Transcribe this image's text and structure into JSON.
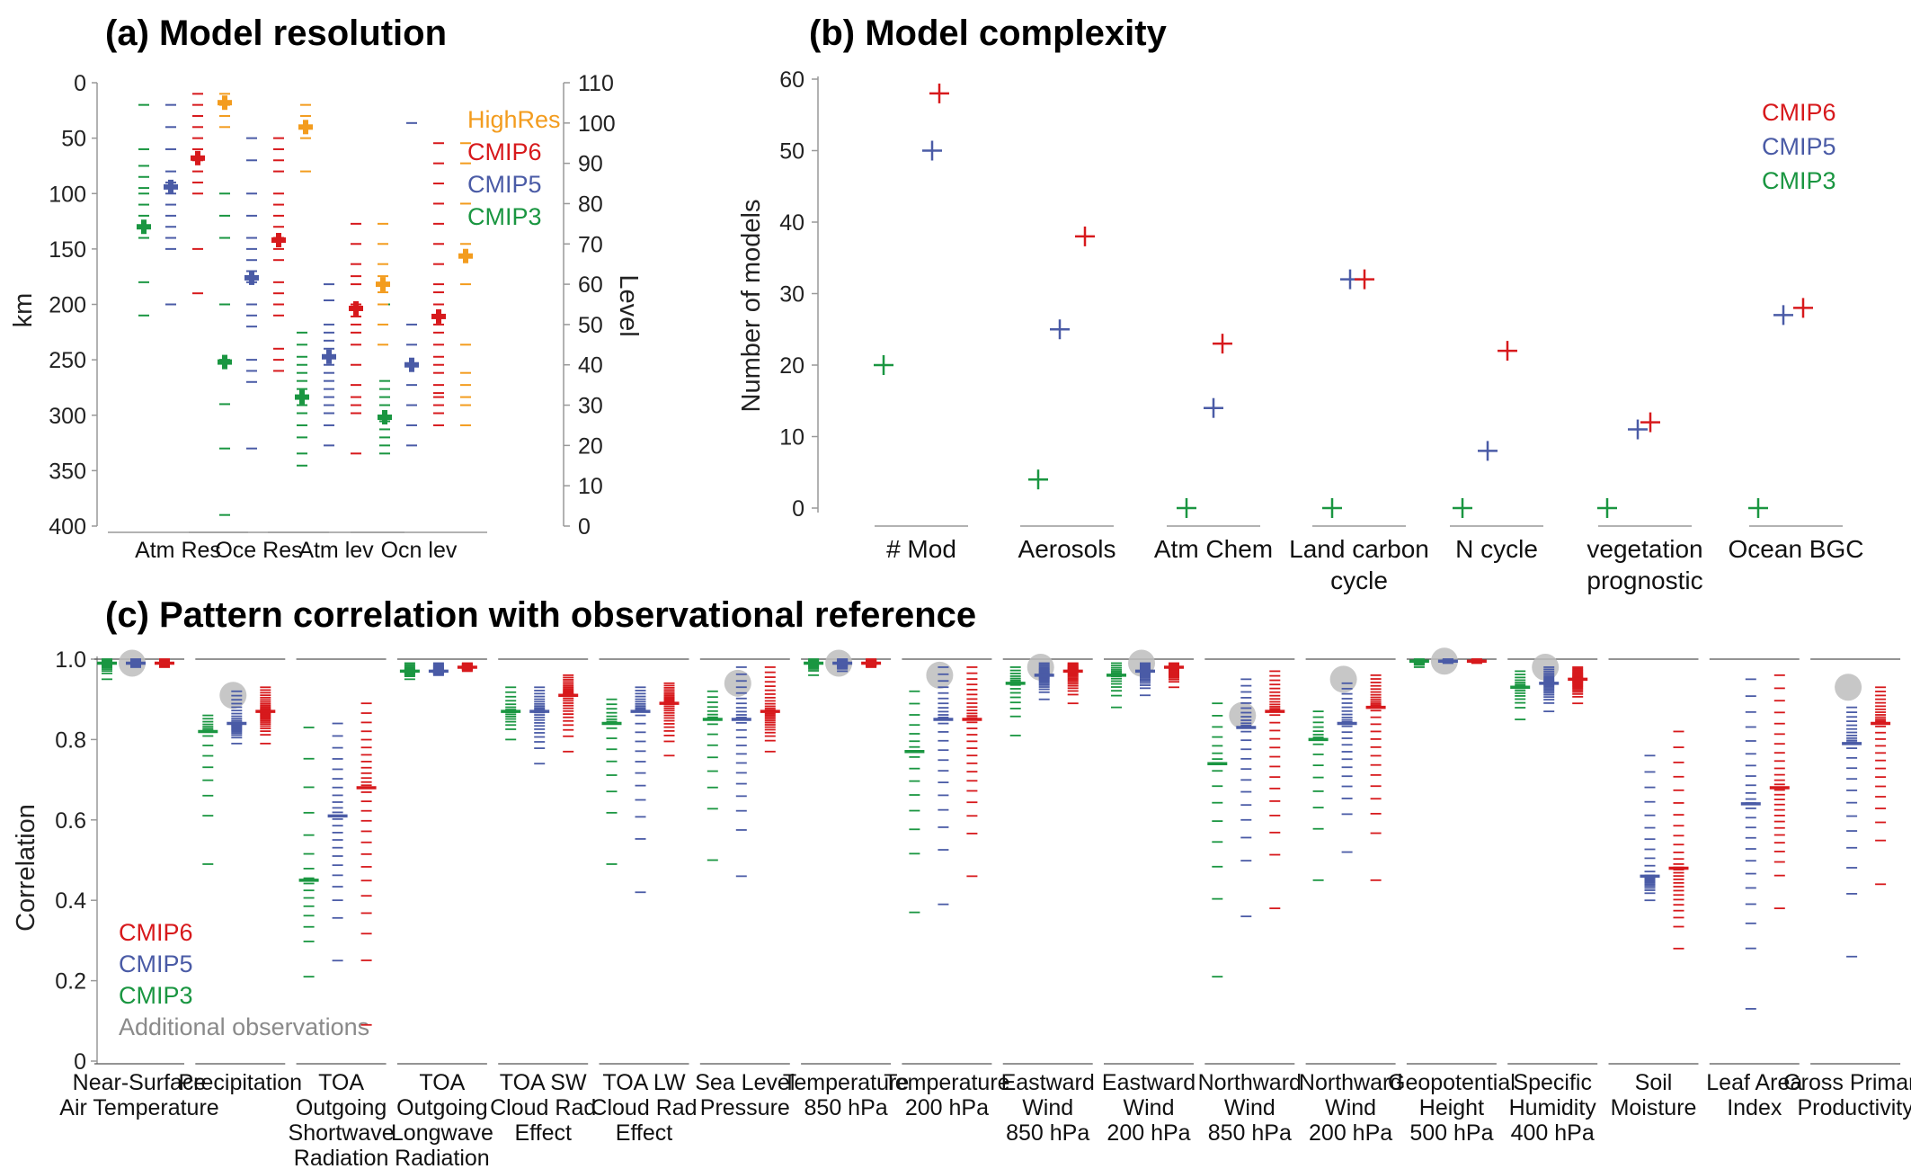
{
  "colors": {
    "CMIP3": "#1a9641",
    "CMIP5": "#4a5ba6",
    "CMIP6": "#d7191c",
    "HighRes": "#f39c1e",
    "obs": "#bdbdbd"
  },
  "chart_data": [
    {
      "type": "scatter",
      "title": "(a) Model resolution",
      "ylabel": "km",
      "y2label": "Level",
      "ylim": [
        400,
        0
      ],
      "y2lim": [
        0,
        110
      ],
      "yticks": [
        0,
        50,
        100,
        150,
        200,
        250,
        300,
        350,
        400
      ],
      "y2ticks": [
        0,
        10,
        20,
        30,
        40,
        50,
        60,
        70,
        80,
        90,
        100,
        110
      ],
      "categories": [
        "Atm Res",
        "Oce Res",
        "Atm lev",
        "Ocn lev"
      ],
      "legend": [
        "HighRes",
        "CMIP6",
        "CMIP5",
        "CMIP3"
      ],
      "legend_position": "top-right",
      "series": [
        {
          "name": "CMIP3",
          "color": "#1a9641",
          "axes": [
            "km",
            "km",
            "level",
            "level"
          ],
          "means": [
            130,
            252,
            32,
            27
          ],
          "models": [
            [
              20,
              60,
              75,
              85,
              95,
              100,
              110,
              120,
              130,
              140,
              180,
              210
            ],
            [
              100,
              120,
              140,
              200,
              250,
              290,
              330,
              390
            ],
            [
              15,
              18,
              22,
              25,
              28,
              30,
              32,
              34,
              36,
              38,
              40,
              42,
              45,
              48
            ],
            [
              18,
              20,
              22,
              24,
              26,
              27,
              30,
              32,
              34,
              36,
              55
            ]
          ]
        },
        {
          "name": "CMIP5",
          "color": "#4a5ba6",
          "axes": [
            "km",
            "km",
            "level",
            "level"
          ],
          "means": [
            94,
            176,
            42,
            40
          ],
          "models": [
            [
              20,
              40,
              60,
              80,
              90,
              100,
              110,
              120,
              130,
              140,
              150,
              200
            ],
            [
              50,
              70,
              100,
              120,
              140,
              150,
              160,
              170,
              180,
              200,
              210,
              220,
              250,
              260,
              270,
              330
            ],
            [
              20,
              25,
              28,
              30,
              32,
              34,
              36,
              38,
              40,
              42,
              44,
              46,
              48,
              50,
              56,
              60
            ],
            [
              20,
              25,
              30,
              35,
              40,
              45,
              50,
              100
            ]
          ]
        },
        {
          "name": "CMIP6",
          "color": "#d7191c",
          "axes": [
            "km",
            "km",
            "level",
            "level"
          ],
          "means": [
            68,
            142,
            54,
            52
          ],
          "models": [
            [
              10,
              20,
              30,
              40,
              50,
              60,
              70,
              80,
              90,
              100,
              150,
              190
            ],
            [
              50,
              60,
              70,
              80,
              100,
              110,
              120,
              130,
              140,
              150,
              160,
              180,
              190,
              200,
              210,
              240,
              250,
              260
            ],
            [
              18,
              28,
              30,
              32,
              35,
              40,
              45,
              48,
              50,
              52,
              55,
              60,
              62,
              65,
              70,
              75
            ],
            [
              25,
              28,
              30,
              32,
              33,
              35,
              38,
              40,
              42,
              45,
              48,
              50,
              52,
              55,
              58,
              60,
              65,
              70,
              75,
              80,
              85,
              90,
              95
            ]
          ]
        },
        {
          "name": "HighRes",
          "color": "#f39c1e",
          "axes": [
            "km",
            "km",
            "level",
            "level"
          ],
          "means": [
            18,
            40,
            60,
            67
          ],
          "models": [
            [
              10,
              20,
              30,
              40
            ],
            [
              20,
              30,
              40,
              50,
              80
            ],
            [
              45,
              50,
              55,
              58,
              60,
              62,
              65,
              70,
              75
            ],
            [
              25,
              30,
              32,
              35,
              38,
              45,
              60,
              70,
              80,
              90,
              95
            ]
          ]
        }
      ]
    },
    {
      "type": "scatter",
      "title": "(b) Model complexity",
      "ylabel": "Number of models",
      "ylim": [
        0,
        60
      ],
      "yticks": [
        0,
        10,
        20,
        30,
        40,
        50,
        60
      ],
      "categories": [
        "# Mod",
        "Aerosols",
        "Atm Chem",
        "Land carbon\ncycle",
        "N cycle",
        "vegetation\nprognostic",
        "Ocean BGC"
      ],
      "legend": [
        "CMIP6",
        "CMIP5",
        "CMIP3"
      ],
      "legend_position": "top-right",
      "series": [
        {
          "name": "CMIP3",
          "color": "#1a9641",
          "values": [
            20,
            4,
            0,
            0,
            0,
            0,
            0
          ]
        },
        {
          "name": "CMIP5",
          "color": "#4a5ba6",
          "values": [
            50,
            25,
            14,
            32,
            8,
            11,
            27
          ]
        },
        {
          "name": "CMIP6",
          "color": "#d7191c",
          "values": [
            58,
            38,
            23,
            32,
            22,
            12,
            28
          ]
        }
      ]
    },
    {
      "type": "scatter",
      "title": "(c) Pattern correlation with observational reference",
      "ylabel": "Correlation",
      "ylim": [
        0,
        1
      ],
      "yticks": [
        "0",
        "0.2",
        "0.4",
        "0.6",
        "0.8",
        "1.0"
      ],
      "categories": [
        "Near-Surface\nAir Temperature",
        "Precipitation",
        "TOA\nOutgoing\nShortwave\nRadiation",
        "TOA\nOutgoing\nLongwave\nRadiation",
        "TOA SW\nCloud Rad\nEffect",
        "TOA LW\nCloud Rad\nEffect",
        "Sea Level\nPressure",
        "Temperature\n850 hPa",
        "Temperature\n200 hPa",
        "Eastward\nWind\n850 hPa",
        "Eastward\nWind\n200 hPa",
        "Northward\nWind\n850 hPa",
        "Northward\nWind\n200 hPa",
        "Geopotential\nHeight\n500 hPa",
        "Specific\nHumidity\n400 hPa",
        "Soil\nMoisture",
        "Leaf Area\nIndex",
        "Gross Primary\nProductivity"
      ],
      "legend": [
        "CMIP6",
        "CMIP5",
        "CMIP3",
        "Additional observations"
      ],
      "legend_position": "bottom-left",
      "observations": [
        0.99,
        0.91,
        null,
        null,
        null,
        null,
        0.94,
        0.99,
        0.96,
        0.98,
        0.99,
        0.86,
        0.95,
        0.995,
        0.98,
        null,
        null,
        0.93
      ],
      "series": [
        {
          "name": "CMIP3",
          "color": "#1a9641",
          "means": [
            0.99,
            0.82,
            0.45,
            0.97,
            0.87,
            0.84,
            0.85,
            0.99,
            0.77,
            0.94,
            0.96,
            0.74,
            0.8,
            0.995,
            0.93,
            null,
            null,
            null
          ],
          "ranges": [
            [
              0.95,
              1.0
            ],
            [
              0.49,
              0.86
            ],
            [
              0.21,
              0.83
            ],
            [
              0.95,
              0.99
            ],
            [
              0.8,
              0.93
            ],
            [
              0.49,
              0.9
            ],
            [
              0.5,
              0.92
            ],
            [
              0.96,
              1.0
            ],
            [
              0.37,
              0.92
            ],
            [
              0.81,
              0.98
            ],
            [
              0.88,
              0.99
            ],
            [
              0.21,
              0.89
            ],
            [
              0.45,
              0.87
            ],
            [
              0.98,
              1.0
            ],
            [
              0.85,
              0.97
            ],
            null,
            null,
            null
          ]
        },
        {
          "name": "CMIP5",
          "color": "#4a5ba6",
          "means": [
            0.99,
            0.84,
            0.61,
            0.97,
            0.87,
            0.87,
            0.85,
            0.99,
            0.85,
            0.96,
            0.97,
            0.83,
            0.84,
            0.995,
            0.94,
            0.46,
            0.64,
            0.79
          ],
          "ranges": [
            [
              0.98,
              1.0
            ],
            [
              0.79,
              0.92
            ],
            [
              0.25,
              0.84
            ],
            [
              0.96,
              0.99
            ],
            [
              0.74,
              0.93
            ],
            [
              0.42,
              0.93
            ],
            [
              0.46,
              0.98
            ],
            [
              0.97,
              1.0
            ],
            [
              0.39,
              0.98
            ],
            [
              0.9,
              0.99
            ],
            [
              0.91,
              0.99
            ],
            [
              0.36,
              0.95
            ],
            [
              0.52,
              0.94
            ],
            [
              0.99,
              1.0
            ],
            [
              0.87,
              0.98
            ],
            [
              0.4,
              0.76
            ],
            [
              0.13,
              0.95
            ],
            [
              0.26,
              0.88
            ]
          ]
        },
        {
          "name": "CMIP6",
          "color": "#d7191c",
          "means": [
            0.99,
            0.87,
            0.68,
            0.98,
            0.91,
            0.89,
            0.87,
            0.99,
            0.85,
            0.97,
            0.98,
            0.87,
            0.88,
            0.995,
            0.95,
            0.48,
            0.68,
            0.84
          ],
          "ranges": [
            [
              0.98,
              1.0
            ],
            [
              0.79,
              0.93
            ],
            [
              0.09,
              0.89
            ],
            [
              0.97,
              0.99
            ],
            [
              0.77,
              0.96
            ],
            [
              0.76,
              0.94
            ],
            [
              0.77,
              0.98
            ],
            [
              0.98,
              1.0
            ],
            [
              0.46,
              0.98
            ],
            [
              0.89,
              0.99
            ],
            [
              0.93,
              0.99
            ],
            [
              0.38,
              0.97
            ],
            [
              0.45,
              0.96
            ],
            [
              0.99,
              1.0
            ],
            [
              0.89,
              0.98
            ],
            [
              0.28,
              0.82
            ],
            [
              0.38,
              0.96
            ],
            [
              0.44,
              0.93
            ]
          ]
        }
      ]
    }
  ]
}
